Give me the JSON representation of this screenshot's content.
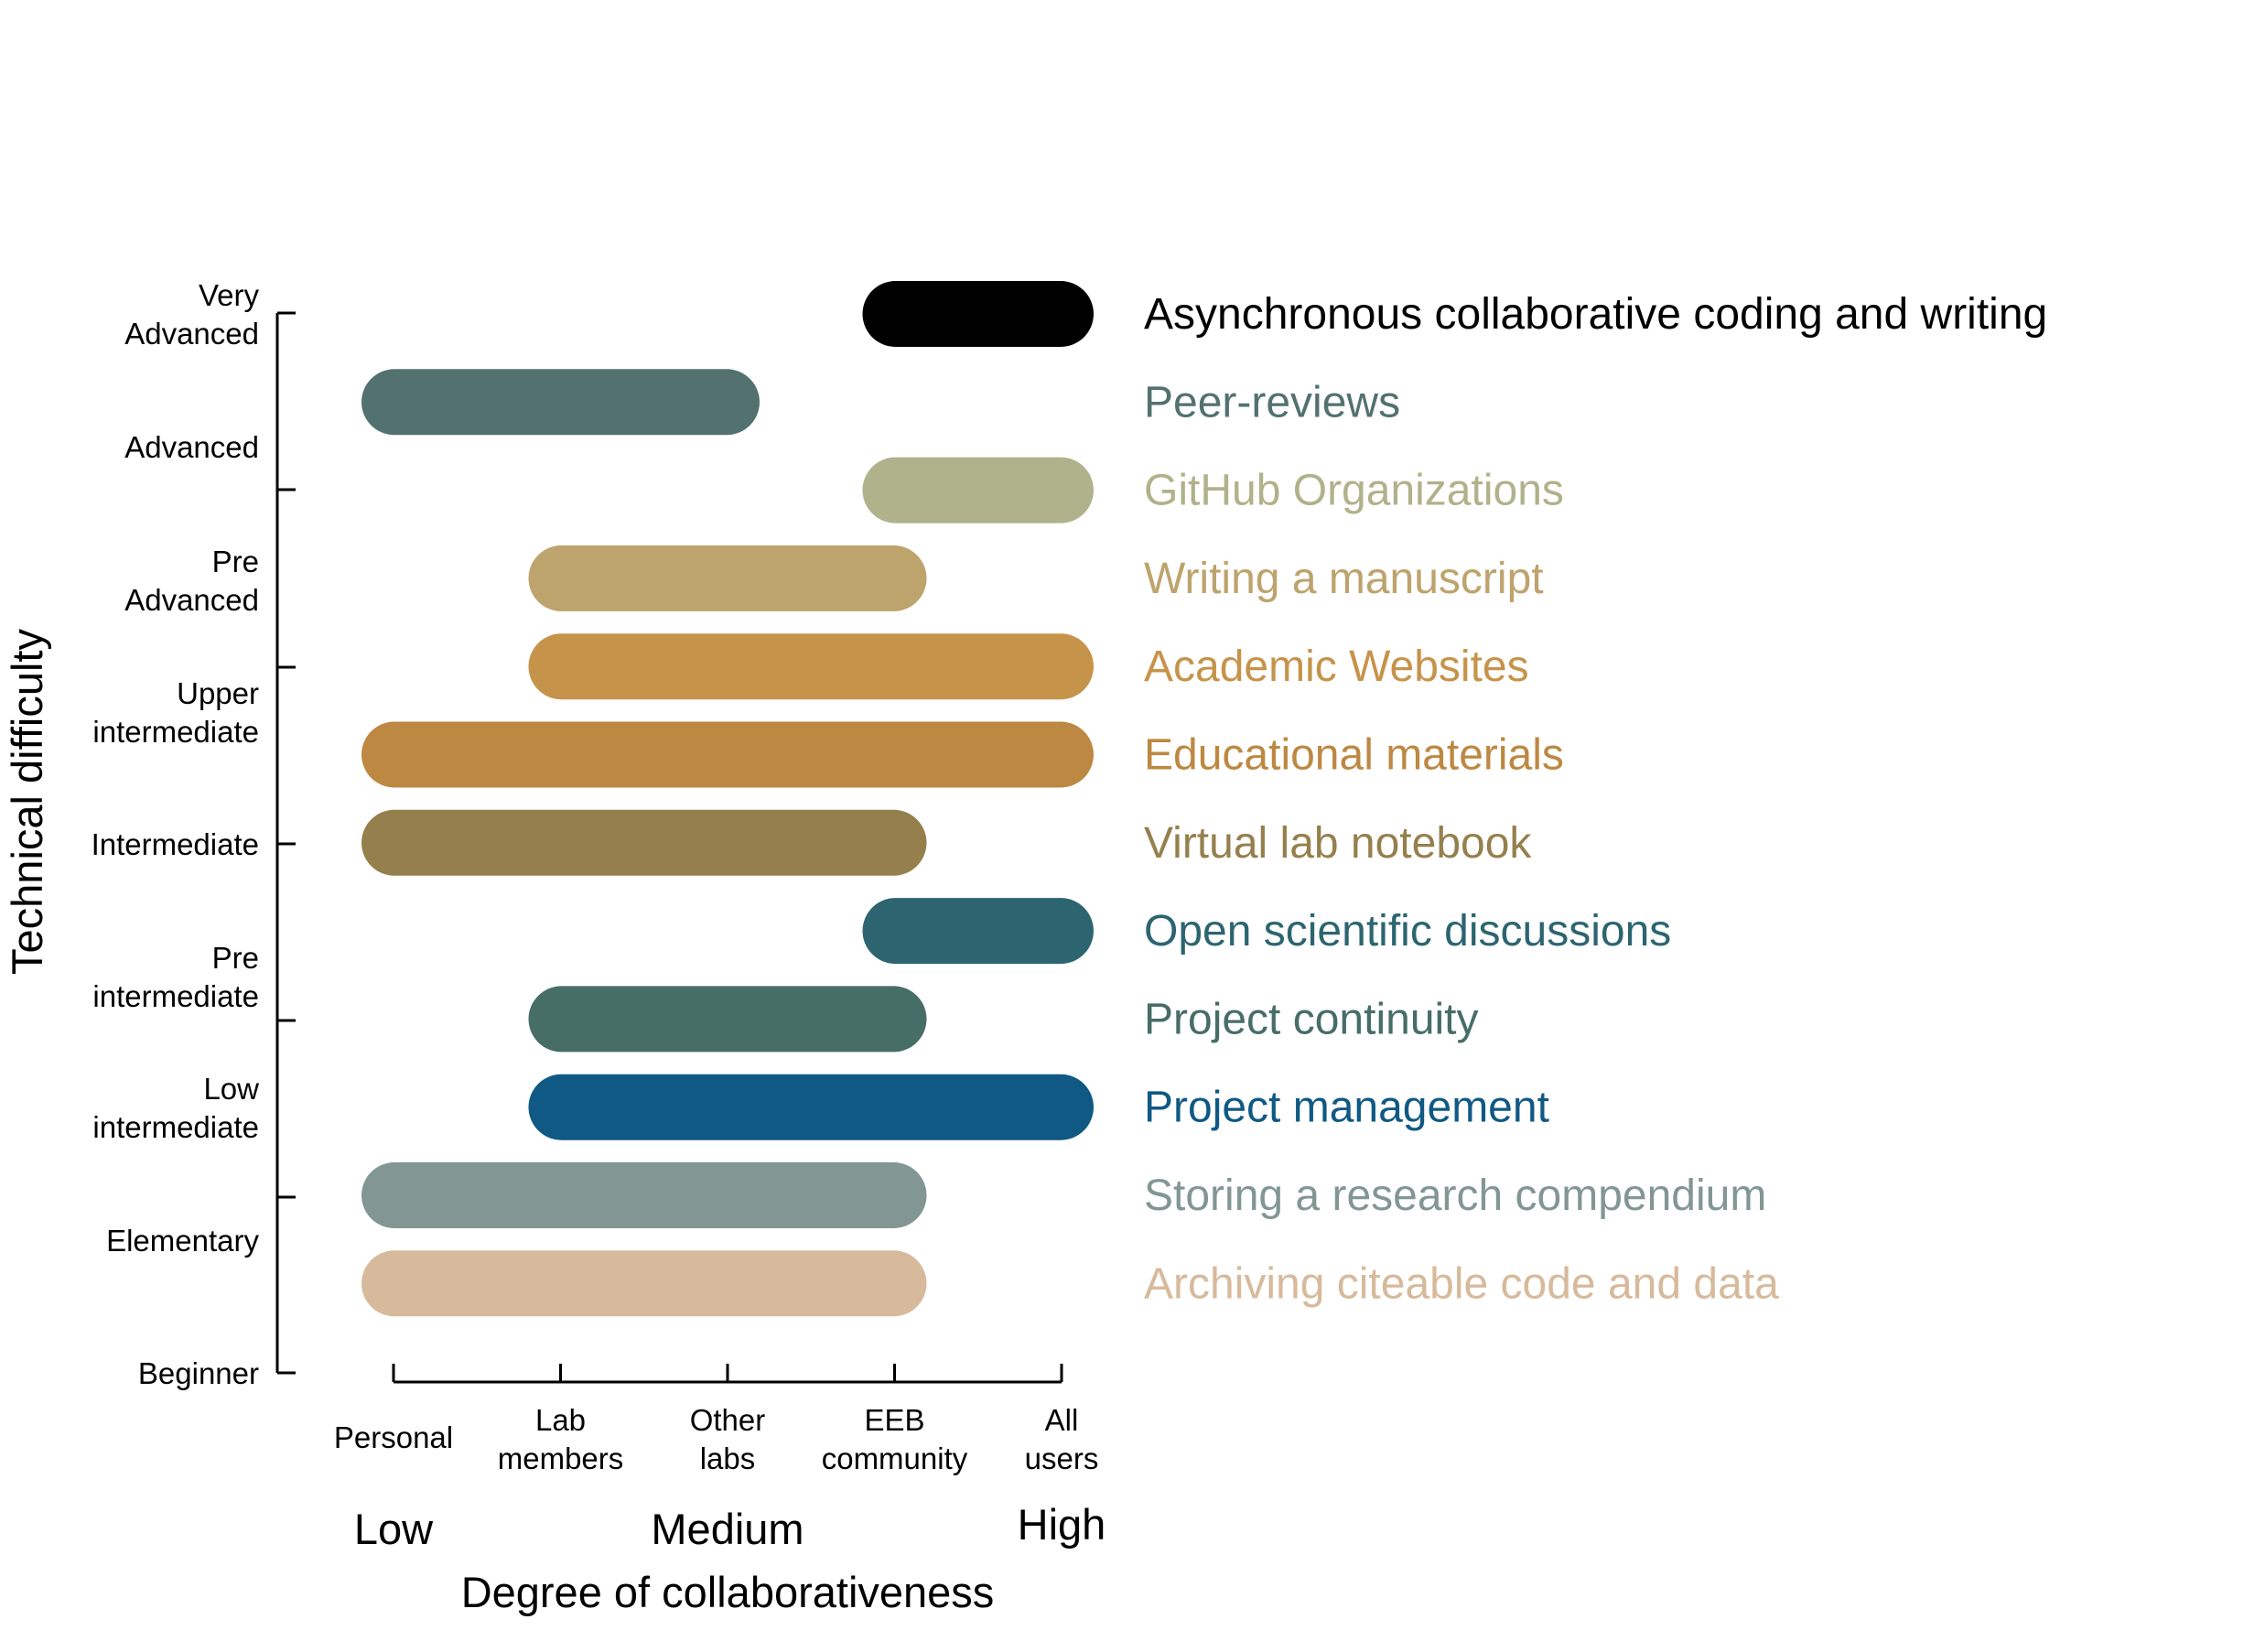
{
  "chart_data": {
    "type": "bar",
    "orientation": "horizontal-range",
    "title": "",
    "xlabel": "Degree of collaborativeness",
    "ylabel": "Technical difficulty",
    "xlim": [
      1,
      5
    ],
    "ylim": [
      0,
      9
    ],
    "x_ticks": [
      {
        "value": 1,
        "label": [
          "Personal"
        ]
      },
      {
        "value": 2,
        "label": [
          "Lab",
          "members"
        ]
      },
      {
        "value": 3,
        "label": [
          "Other",
          "labs"
        ]
      },
      {
        "value": 4,
        "label": [
          "EEB",
          "community"
        ]
      },
      {
        "value": 5,
        "label": [
          "All",
          "users"
        ]
      }
    ],
    "x_level_labels": [
      {
        "value": 1,
        "label": "Low"
      },
      {
        "value": 3,
        "label": "Medium"
      },
      {
        "value": 5,
        "label": "High"
      }
    ],
    "y_ticks": [
      0,
      1,
      2,
      3,
      4,
      5,
      6,
      7,
      8,
      9
    ],
    "y_category_labels": [
      {
        "value": 0,
        "label": [
          "Beginner"
        ]
      },
      {
        "value": 0.75,
        "label": [
          "Elementary"
        ]
      },
      {
        "value": 1.5,
        "label": [
          "Low",
          "intermediate"
        ]
      },
      {
        "value": 2.25,
        "label": [
          "Pre",
          "intermediate"
        ]
      },
      {
        "value": 3,
        "label": [
          "Intermediate"
        ]
      },
      {
        "value": 3.6,
        "label": [
          "Upper",
          "intermediate"
        ]
      },
      {
        "value": 4.35,
        "label": [
          "Pre",
          "Advanced"
        ]
      },
      {
        "value": 5.25,
        "label": [
          "Advanced"
        ]
      },
      {
        "value": 5.9,
        "label": [
          "Very",
          "Advanced"
        ]
      }
    ],
    "series": [
      {
        "name": "Asynchronous collaborative coding and writing",
        "start": 4,
        "end": 5,
        "y": 6.0,
        "color": "#000000"
      },
      {
        "name": "Peer-reviews",
        "start": 1,
        "end": 3,
        "y": 5.5,
        "color": "#52716F"
      },
      {
        "name": "GitHub Organizations",
        "start": 4,
        "end": 5,
        "y": 5.0,
        "color": "#AFB28A"
      },
      {
        "name": "Writing a manuscript",
        "start": 2,
        "end": 4,
        "y": 4.5,
        "color": "#BDA36C"
      },
      {
        "name": "Academic Websites",
        "start": 2,
        "end": 5,
        "y": 4.0,
        "color": "#C6934A"
      },
      {
        "name": "Educational materials",
        "start": 1,
        "end": 5,
        "y": 3.5,
        "color": "#BD8842"
      },
      {
        "name": "Virtual lab notebook",
        "start": 1,
        "end": 4,
        "y": 3.0,
        "color": "#95804D"
      },
      {
        "name": "Open scientific discussions",
        "start": 4,
        "end": 5,
        "y": 2.5,
        "color": "#2C6570"
      },
      {
        "name": "Project continuity",
        "start": 2,
        "end": 4,
        "y": 2.0,
        "color": "#476D67"
      },
      {
        "name": "Project management",
        "start": 2,
        "end": 5,
        "y": 1.5,
        "color": "#0F5984"
      },
      {
        "name": "Storing a research compendium",
        "start": 1,
        "end": 4,
        "y": 1.0,
        "color": "#829693"
      },
      {
        "name": "Archiving citeable code and data",
        "start": 1,
        "end": 4,
        "y": 0.5,
        "color": "#D7BA9B"
      }
    ],
    "grid": false,
    "legend": "none"
  }
}
